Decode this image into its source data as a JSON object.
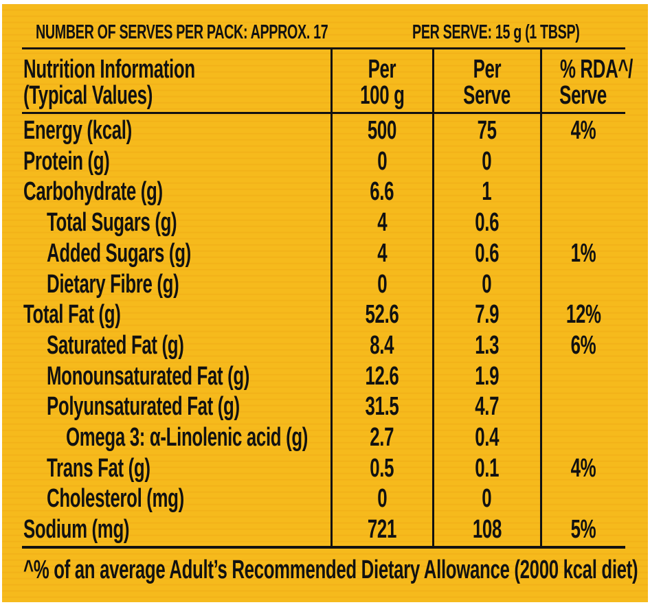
{
  "header": {
    "serves_per_pack": "NUMBER OF SERVES PER PACK: APPROX. 17",
    "per_serve": "PER SERVE: 15 g (1 TBSP)"
  },
  "columns": {
    "label_line1": "Nutrition Information",
    "label_line2": "(Typical Values)",
    "per100_line1": "Per",
    "per100_line2": "100 g",
    "perserve_line1": "Per",
    "perserve_line2": "Serve",
    "rda_line1": "% RDA^/",
    "rda_line2": "Serve"
  },
  "rows": [
    {
      "label": "Energy (kcal)",
      "indent": 0,
      "per100": "500",
      "perserve": "75",
      "rda": "4%"
    },
    {
      "label": "Protein (g)",
      "indent": 0,
      "per100": "0",
      "perserve": "0",
      "rda": ""
    },
    {
      "label": "Carbohydrate (g)",
      "indent": 0,
      "per100": "6.6",
      "perserve": "1",
      "rda": ""
    },
    {
      "label": "Total Sugars (g)",
      "indent": 1,
      "per100": "4",
      "perserve": "0.6",
      "rda": ""
    },
    {
      "label": "Added Sugars (g)",
      "indent": 1,
      "per100": "4",
      "perserve": "0.6",
      "rda": "1%"
    },
    {
      "label": "Dietary Fibre (g)",
      "indent": 1,
      "per100": "0",
      "perserve": "0",
      "rda": ""
    },
    {
      "label": "Total Fat (g)",
      "indent": 0,
      "per100": "52.6",
      "perserve": "7.9",
      "rda": "12%"
    },
    {
      "label": "Saturated Fat (g)",
      "indent": 1,
      "per100": "8.4",
      "perserve": "1.3",
      "rda": "6%"
    },
    {
      "label": "Monounsaturated Fat (g)",
      "indent": 1,
      "per100": "12.6",
      "perserve": "1.9",
      "rda": ""
    },
    {
      "label": "Polyunsaturated Fat (g)",
      "indent": 1,
      "per100": "31.5",
      "perserve": "4.7",
      "rda": ""
    },
    {
      "label": "Omega 3: α-Linolenic acid (g)",
      "indent": 2,
      "per100": "2.7",
      "perserve": "0.4",
      "rda": ""
    },
    {
      "label": "Trans Fat (g)",
      "indent": 1,
      "per100": "0.5",
      "perserve": "0.1",
      "rda": "4%"
    },
    {
      "label": "Cholesterol (mg)",
      "indent": 1,
      "per100": "0",
      "perserve": "0",
      "rda": ""
    },
    {
      "label": "Sodium (mg)",
      "indent": 0,
      "per100": "721",
      "perserve": "108",
      "rda": "5%"
    }
  ],
  "footnote": "^% of an average Adult’s Recommended Dietary Allowance (2000 kcal diet)",
  "colors": {
    "background": "#f6ba1c",
    "text": "#111111"
  }
}
